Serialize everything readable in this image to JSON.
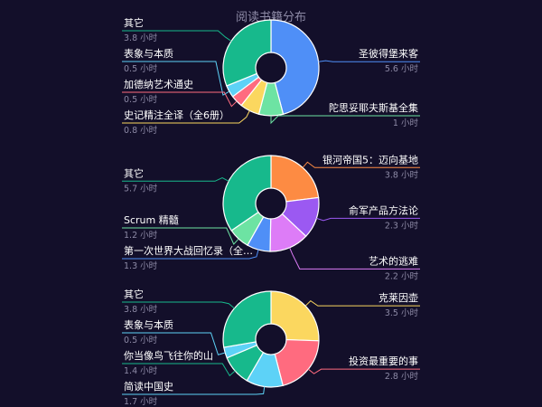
{
  "chart_data": [
    {
      "type": "pie",
      "title": "阅读书籍分布",
      "unit": "小时",
      "slices": [
        {
          "label": "圣彼得堡来客",
          "value": 5.6,
          "value_text": "5.6 小时",
          "color": "#4f8ff7",
          "side": "right"
        },
        {
          "label": "陀思妥耶夫斯基全集",
          "value": 1,
          "value_text": "1 小时",
          "color": "#6de3a3",
          "side": "right"
        },
        {
          "label": "史记精注全译（全6册）",
          "value": 0.8,
          "value_text": "0.8 小时",
          "color": "#fbd75f",
          "side": "left"
        },
        {
          "label": "加德纳艺术通史",
          "value": 0.5,
          "value_text": "0.5 小时",
          "color": "#ff6b7f",
          "side": "left"
        },
        {
          "label": "表象与本质",
          "value": 0.5,
          "value_text": "0.5 小时",
          "color": "#5dd2f7",
          "side": "left"
        },
        {
          "label": "其它",
          "value": 3.8,
          "value_text": "3.8 小时",
          "color": "#17b98c",
          "side": "left"
        }
      ]
    },
    {
      "type": "pie",
      "title": "",
      "unit": "小时",
      "slices": [
        {
          "label": "银河帝国5：迈向基地",
          "value": 3.8,
          "value_text": "3.8 小时",
          "color": "#fd8b43",
          "side": "right"
        },
        {
          "label": "俞军产品方法论",
          "value": 2.3,
          "value_text": "2.3 小时",
          "color": "#9b59f2",
          "side": "right"
        },
        {
          "label": "艺术的逃难",
          "value": 2.2,
          "value_text": "2.2 小时",
          "color": "#dd7cf7",
          "side": "right"
        },
        {
          "label": "第一次世界大战回忆录（全…",
          "value": 1.3,
          "value_text": "1.3 小时",
          "color": "#4f8ff7",
          "side": "left"
        },
        {
          "label": "Scrum 精髓",
          "value": 1.2,
          "value_text": "1.2 小时",
          "color": "#6de3a3",
          "side": "left"
        },
        {
          "label": "其它",
          "value": 5.7,
          "value_text": "5.7 小时",
          "color": "#17b98c",
          "side": "left"
        }
      ]
    },
    {
      "type": "pie",
      "title": "",
      "unit": "小时",
      "slices": [
        {
          "label": "克莱因壶",
          "value": 3.5,
          "value_text": "3.5 小时",
          "color": "#fbd75f",
          "side": "right"
        },
        {
          "label": "投资最重要的事",
          "value": 2.8,
          "value_text": "2.8 小时",
          "color": "#ff6b7f",
          "side": "right"
        },
        {
          "label": "简读中国史",
          "value": 1.7,
          "value_text": "1.7 小时",
          "color": "#5dd2f7",
          "side": "left"
        },
        {
          "label": "你当像鸟飞往你的山",
          "value": 1.4,
          "value_text": "1.4 小时",
          "color": "#17b98c",
          "side": "left"
        },
        {
          "label": "表象与本质",
          "value": 0.5,
          "value_text": "0.5 小时",
          "color": "#5dd2f7",
          "side": "left"
        },
        {
          "label": "其它",
          "value": 3.8,
          "value_text": "3.8 小时",
          "color": "#17b98c",
          "side": "left"
        }
      ]
    }
  ]
}
